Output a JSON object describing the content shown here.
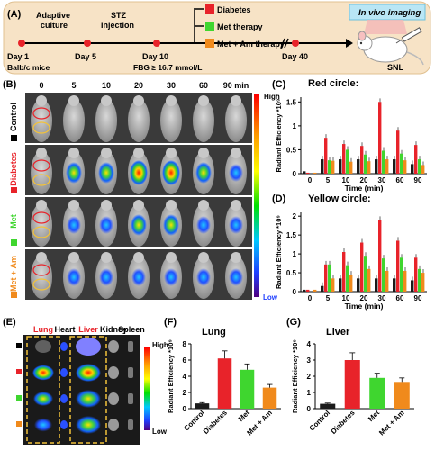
{
  "panel_labels": {
    "A": "(A)",
    "B": "(B)",
    "C": "(C)",
    "D": "(D)",
    "E": "(E)",
    "F": "(F)",
    "G": "(G)"
  },
  "timeline": {
    "steps": [
      {
        "day": "Day 1",
        "note": ""
      },
      {
        "day": "Day 5",
        "note": "Adaptive culture"
      },
      {
        "day": "Day 10",
        "note": "STZ Injection"
      },
      {
        "day": "Day 40",
        "note": ""
      }
    ],
    "adaptive_line1": "Adaptive",
    "adaptive_line2": "culture",
    "stz_line1": "STZ",
    "stz_line2": "Injection",
    "mice": "Balb/c mice",
    "fbg": "FBG ≥ 16.7 mmol/L",
    "groups": [
      {
        "label": "Diabetes",
        "color": "#e8232a"
      },
      {
        "label": "Met therapy",
        "color": "#3fd62f"
      },
      {
        "label": "Met + Am therapy",
        "color": "#f08a1c"
      }
    ],
    "imaging": "In vivo imaging",
    "snl": "SNL"
  },
  "panel_b": {
    "time_labels": [
      "0",
      "5",
      "10",
      "20",
      "30",
      "60",
      "90 min"
    ],
    "row_labels": [
      {
        "label": "Control",
        "color": "#000000"
      },
      {
        "label": "Diabetes",
        "color": "#e8232a"
      },
      {
        "label": "Met",
        "color": "#3fd62f"
      },
      {
        "label": "Met + Am",
        "color": "#f08a1c"
      }
    ],
    "scale_high": "High",
    "scale_low": "Low"
  },
  "panel_e": {
    "organs": [
      {
        "label": "Lung",
        "color": "#e8232a"
      },
      {
        "label": "Heart",
        "color": "#000000"
      },
      {
        "label": "Liver",
        "color": "#e8232a"
      },
      {
        "label": "Kidney",
        "color": "#000000"
      },
      {
        "label": "Spleen",
        "color": "#000000"
      }
    ],
    "row_colors": [
      "#000000",
      "#e8232a",
      "#3fd62f",
      "#f08a1c"
    ],
    "scale_high": "High",
    "scale_low": "Low"
  },
  "chart_data": [
    {
      "id": "C",
      "type": "bar",
      "title": "Red circle:",
      "xlabel": "Time (min)",
      "ylabel": "Radiant Efficiency *10⁹",
      "categories": [
        "0",
        "5",
        "10",
        "20",
        "30",
        "60",
        "90"
      ],
      "ylim": [
        0,
        1.6
      ],
      "yticks": [
        0,
        0.5,
        1.0,
        1.5
      ],
      "series": [
        {
          "name": "Control",
          "color": "#1a1a1a",
          "values": [
            0.05,
            0.3,
            0.3,
            0.3,
            0.3,
            0.3,
            0.2
          ]
        },
        {
          "name": "Diabetes",
          "color": "#e8232a",
          "values": [
            0.02,
            0.75,
            0.62,
            0.58,
            1.5,
            0.9,
            0.6
          ]
        },
        {
          "name": "Met",
          "color": "#3fd62f",
          "values": [
            0.0,
            0.28,
            0.5,
            0.4,
            0.48,
            0.42,
            0.3
          ]
        },
        {
          "name": "Met + Am",
          "color": "#f08a1c",
          "values": [
            0.02,
            0.27,
            0.25,
            0.26,
            0.3,
            0.28,
            0.18
          ]
        }
      ]
    },
    {
      "id": "D",
      "type": "bar",
      "title": "Yellow circle:",
      "xlabel": "Time (min)",
      "ylabel": "Radiant Efficiency *10⁹",
      "categories": [
        "0",
        "5",
        "10",
        "20",
        "30",
        "60",
        "90"
      ],
      "ylim": [
        0,
        2.1
      ],
      "yticks": [
        0,
        0.5,
        1.0,
        1.5,
        2.0
      ],
      "series": [
        {
          "name": "Control",
          "color": "#1a1a1a",
          "values": [
            0.05,
            0.15,
            0.35,
            0.35,
            0.35,
            0.35,
            0.3
          ]
        },
        {
          "name": "Diabetes",
          "color": "#e8232a",
          "values": [
            0.05,
            0.72,
            1.05,
            1.3,
            1.9,
            1.35,
            0.9
          ]
        },
        {
          "name": "Met",
          "color": "#3fd62f",
          "values": [
            0.0,
            0.72,
            0.7,
            0.95,
            0.88,
            0.9,
            0.6
          ]
        },
        {
          "name": "Met + Am",
          "color": "#f08a1c",
          "values": [
            0.05,
            0.35,
            0.45,
            0.6,
            0.55,
            0.55,
            0.5
          ]
        }
      ]
    },
    {
      "id": "F",
      "type": "bar",
      "title": "Lung",
      "ylabel": "Radiant Efficiency *10⁹",
      "categories": [
        "Control",
        "Diabetes",
        "Met",
        "Met + Am"
      ],
      "values": [
        0.65,
        6.2,
        4.8,
        2.6
      ],
      "colors": [
        "#1a1a1a",
        "#e8232a",
        "#3fd62f",
        "#f08a1c"
      ],
      "ylim": [
        0,
        8
      ],
      "yticks": [
        0,
        2,
        4,
        6,
        8
      ]
    },
    {
      "id": "G",
      "type": "bar",
      "title": "Liver",
      "ylabel": "Radiant Efficiency *10⁹",
      "categories": [
        "Control",
        "Diabetes",
        "Met",
        "Met + Am"
      ],
      "values": [
        0.3,
        3.0,
        1.9,
        1.65
      ],
      "colors": [
        "#1a1a1a",
        "#e8232a",
        "#3fd62f",
        "#f08a1c"
      ],
      "ylim": [
        0,
        4
      ],
      "yticks": [
        0,
        1,
        2,
        3,
        4
      ]
    }
  ]
}
